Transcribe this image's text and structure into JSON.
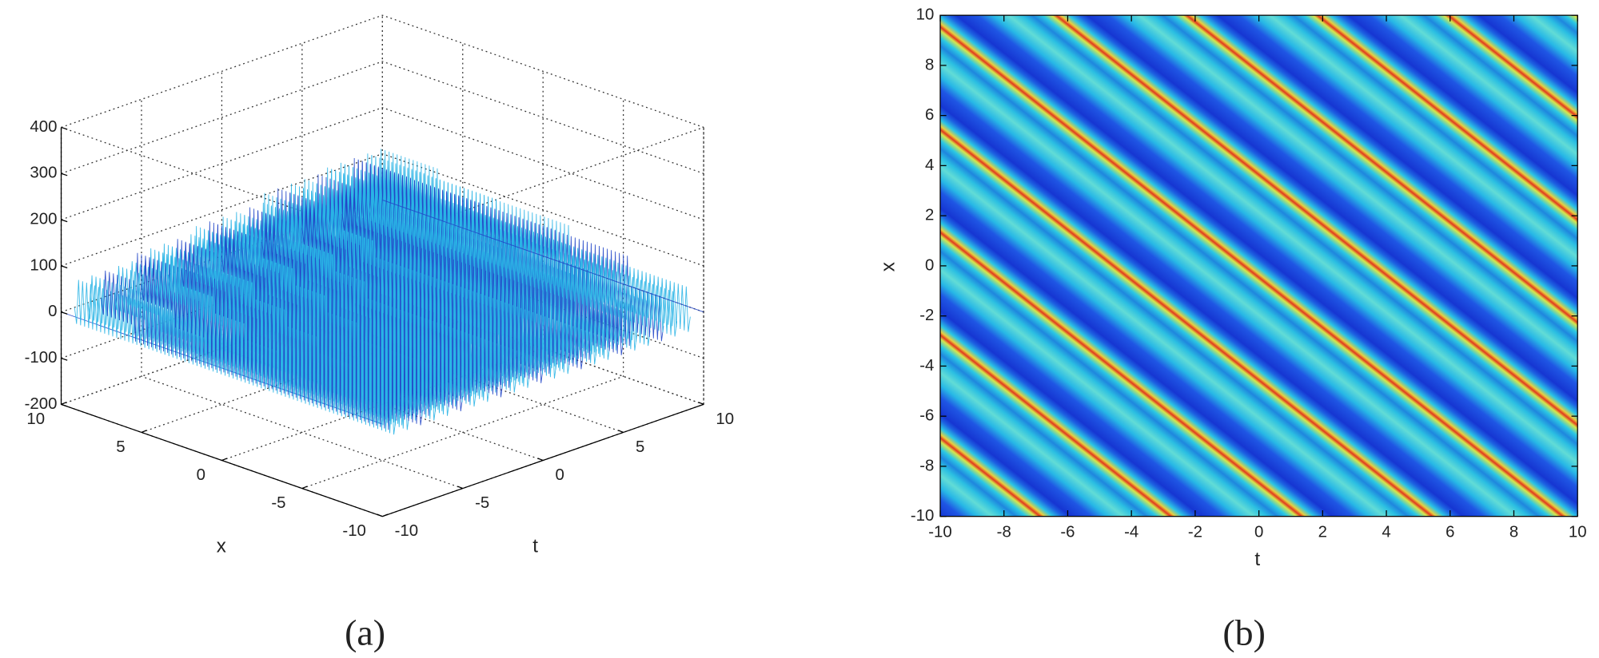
{
  "chart_data": [
    {
      "type": "surface3d",
      "xlim": [
        -10,
        10
      ],
      "xticks": [
        -10,
        -5,
        0,
        5,
        10
      ],
      "ylim": [
        -10,
        10
      ],
      "yticks": [
        -10,
        -5,
        0,
        5,
        10
      ],
      "zlim": [
        -200,
        400
      ],
      "zticks": [
        -200,
        -100,
        0,
        100,
        200,
        300,
        400
      ],
      "xlabel": "x",
      "ylabel": "t",
      "caption": "(a)",
      "grid": true,
      "color": "#29b4e6"
    },
    {
      "type": "density",
      "xlim": [
        -10,
        10
      ],
      "xticks": [
        -10,
        -8,
        -6,
        -4,
        -2,
        0,
        2,
        4,
        6,
        8,
        10
      ],
      "ylim": [
        -10,
        10
      ],
      "yticks": [
        -10,
        -8,
        -6,
        -4,
        -2,
        0,
        2,
        4,
        6,
        8,
        10
      ],
      "xlabel": "t",
      "ylabel": "x",
      "caption": "(b)"
    }
  ]
}
